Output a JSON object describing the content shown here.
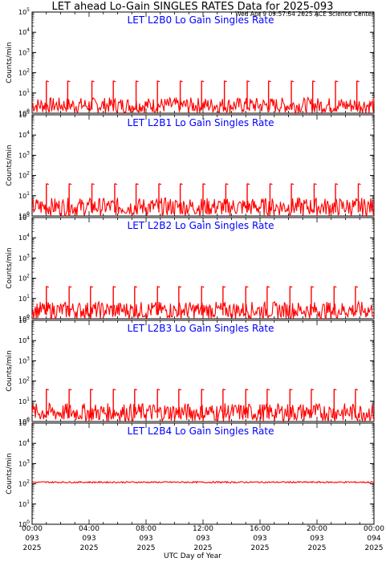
{
  "header": {
    "title": "LET ahead Lo-Gain SINGLES RATES Data for 2025-093",
    "timestamp": "Wed Apr  9 09:57:54 2025 ACE Science Center"
  },
  "colors": {
    "trace": "#ff0000",
    "label": "#0000ff",
    "axis": "#000000",
    "background": "#ffffff"
  },
  "x_axis_label": "UTC Day of Year",
  "chart_data": [
    {
      "type": "line",
      "title": "LET L2B0 Lo Gain Singles Rate",
      "ylabel": "Counts/min",
      "yscale": "log",
      "ylim": [
        1,
        100000
      ],
      "y_ticks": [
        "10^0",
        "10^1",
        "10^2",
        "10^3",
        "10^4",
        "10^5"
      ],
      "xlim": [
        "093 00:00",
        "094 00:00"
      ],
      "x_ticks": [
        {
          "time": "00:00",
          "day": "093",
          "year": "2025"
        },
        {
          "time": "04:00",
          "day": "093",
          "year": "2025"
        },
        {
          "time": "08:00",
          "day": "093",
          "year": "2025"
        },
        {
          "time": "12:00",
          "day": "093",
          "year": "2025"
        },
        {
          "time": "16:00",
          "day": "093",
          "year": "2025"
        },
        {
          "time": "20:00",
          "day": "093",
          "year": "2025"
        },
        {
          "time": "00:00",
          "day": "094",
          "year": "2025"
        }
      ],
      "series": [
        {
          "baseline_range": [
            1,
            6
          ],
          "spike_times_hours": [
            1.0,
            2.5,
            4.2,
            5.7,
            7.3,
            8.8,
            10.4,
            11.9,
            13.5,
            15.1,
            16.6,
            18.2,
            19.7,
            21.3,
            22.8
          ],
          "spike_peak": 40
        }
      ]
    },
    {
      "type": "line",
      "title": "LET L2B1 Lo Gain Singles Rate",
      "ylabel": "Counts/min",
      "yscale": "log",
      "ylim": [
        1,
        100000
      ],
      "y_ticks": [
        "10^0",
        "10^1",
        "10^2",
        "10^3",
        "10^4",
        "10^5"
      ],
      "xlim": [
        "093 00:00",
        "094 00:00"
      ],
      "series": [
        {
          "baseline_range": [
            1,
            8
          ],
          "spike_times_hours": [
            1.0,
            2.6,
            4.2,
            5.8,
            7.3,
            8.9,
            10.4,
            12.0,
            13.6,
            15.1,
            16.7,
            18.2,
            19.8,
            21.3,
            22.9
          ],
          "spike_peak": 40
        }
      ]
    },
    {
      "type": "line",
      "title": "LET L2B2 Lo Gain Singles Rate",
      "ylabel": "Counts/min",
      "yscale": "log",
      "ylim": [
        1,
        100000
      ],
      "y_ticks": [
        "10^0",
        "10^1",
        "10^2",
        "10^3",
        "10^4",
        "10^5"
      ],
      "xlim": [
        "093 00:00",
        "094 00:00"
      ],
      "series": [
        {
          "baseline_range": [
            1,
            7
          ],
          "spike_times_hours": [
            1.0,
            2.6,
            4.1,
            5.7,
            7.2,
            8.8,
            10.3,
            11.9,
            13.4,
            15.0,
            16.5,
            18.1,
            19.6,
            21.2,
            22.7
          ],
          "spike_peak": 40
        }
      ]
    },
    {
      "type": "line",
      "title": "LET L2B3 Lo Gain Singles Rate",
      "ylabel": "Counts/min",
      "yscale": "log",
      "ylim": [
        1,
        100000
      ],
      "y_ticks": [
        "10^0",
        "10^1",
        "10^2",
        "10^3",
        "10^4",
        "10^5"
      ],
      "xlim": [
        "093 00:00",
        "094 00:00"
      ],
      "series": [
        {
          "baseline_range": [
            1,
            8
          ],
          "spike_times_hours": [
            1.0,
            2.6,
            4.1,
            5.7,
            7.2,
            8.8,
            10.3,
            11.9,
            13.4,
            15.0,
            16.5,
            18.1,
            19.6,
            21.2,
            22.7
          ],
          "spike_peak": 40
        }
      ]
    },
    {
      "type": "line",
      "title": "LET L2B4 Lo Gain Singles Rate",
      "ylabel": "Counts/min",
      "yscale": "log",
      "ylim": [
        1,
        100000
      ],
      "y_ticks": [
        "10^0",
        "10^1",
        "10^2",
        "10^3",
        "10^4",
        "10^5"
      ],
      "xlim": [
        "093 00:00",
        "094 00:00"
      ],
      "series": [
        {
          "baseline_range": [
            110,
            130
          ],
          "spike_times_hours": [],
          "spike_peak": 130
        }
      ]
    }
  ]
}
